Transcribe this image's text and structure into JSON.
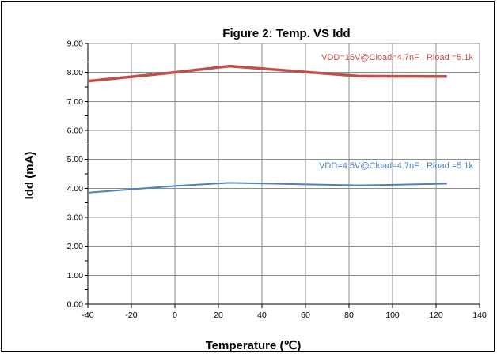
{
  "chart_data": {
    "type": "line",
    "title": "Figure 2: Temp. VS Idd",
    "xlabel": "Temperature (℃)",
    "ylabel": "Idd (mA)",
    "xlim": [
      -40,
      140
    ],
    "ylim": [
      0,
      9
    ],
    "xticks": [
      "-40",
      "-20",
      "0",
      "20",
      "40",
      "60",
      "80",
      "100",
      "120",
      "140"
    ],
    "yticks": [
      "0.00",
      "1.00",
      "2.00",
      "3.00",
      "4.00",
      "5.00",
      "6.00",
      "7.00",
      "8.00",
      "9.00"
    ],
    "grid": true,
    "series": [
      {
        "name": "VDD=15V@Cload=4.7nF , Rload =5.1k",
        "color": "#c0504d",
        "x": [
          -40,
          0,
          25,
          85,
          125
        ],
        "y": [
          7.7,
          8.0,
          8.22,
          7.87,
          7.86
        ]
      },
      {
        "name": "VDD=4.5V@Cload=4.7nF , Rload =5.1k",
        "color": "#4f81bd",
        "x": [
          -40,
          0,
          25,
          85,
          125
        ],
        "y": [
          3.85,
          4.08,
          4.19,
          4.1,
          4.16
        ]
      }
    ]
  }
}
